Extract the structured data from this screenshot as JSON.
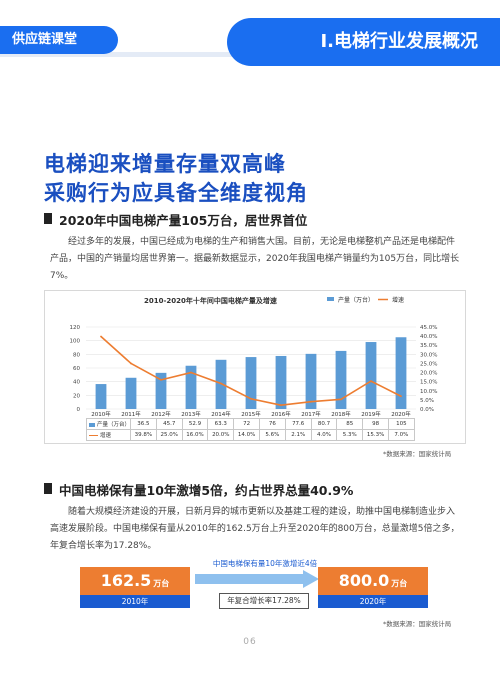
{
  "header": {
    "brand": "供应链课堂",
    "section": "I.电梯行业发展概况"
  },
  "title": {
    "line1": "电梯迎来增量存量双高峰",
    "line2": "采购行为应具备全维度视角"
  },
  "section1": {
    "heading": "2020年中国电梯产量105万台，居世界首位",
    "paragraph": "经过多年的发展，中国已经成为电梯的生产和销售大国。目前，无论是电梯整机产品还是电梯配件产品，中国的产销量均居世界第一。据最新数据显示，2020年我国电梯产销量约为105万台，同比增长7%。",
    "source": "*数据来源：国家统计局"
  },
  "chart_data": {
    "type": "bar",
    "title": "2010-2020年十年间中国电梯产量及增速",
    "categories": [
      "2010年",
      "2011年",
      "2012年",
      "2013年",
      "2014年",
      "2015年",
      "2016年",
      "2017年",
      "2018年",
      "2019年",
      "2020年"
    ],
    "series": [
      {
        "name": "产量（万台）",
        "kind": "bar",
        "axis": "left",
        "color": "#5b9bd5",
        "values": [
          36.5,
          45.7,
          52.9,
          63.3,
          72,
          76,
          77.6,
          80.7,
          85,
          98,
          105
        ],
        "labels": [
          "36.5",
          "45.7",
          "52.9",
          "63.3",
          "72",
          "76",
          "77.6",
          "80.7",
          "85",
          "98",
          "105"
        ]
      },
      {
        "name": "增速",
        "kind": "line",
        "axis": "right",
        "color": "#ed7d31",
        "values": [
          39.8,
          25.0,
          16.0,
          20.0,
          14.0,
          5.6,
          2.1,
          4.0,
          5.3,
          15.3,
          7.0
        ],
        "labels": [
          "39.8%",
          "25.0%",
          "16.0%",
          "20.0%",
          "14.0%",
          "5.6%",
          "2.1%",
          "4.0%",
          "5.3%",
          "15.3%",
          "7.0%"
        ]
      }
    ],
    "y_left": {
      "min": 0,
      "max": 120,
      "ticks": [
        0,
        20,
        40,
        60,
        80,
        100,
        120
      ]
    },
    "y_right": {
      "min": 0,
      "max": 45,
      "ticks": [
        "0.0%",
        "5.0%",
        "10.0%",
        "15.0%",
        "20.0%",
        "25.0%",
        "30.0%",
        "35.0%",
        "40.0%",
        "45.0%"
      ]
    },
    "grid": true,
    "legend": "top-right"
  },
  "section2": {
    "heading": "中国电梯保有量10年激增5倍，约占世界总量40.9%",
    "paragraph": "随着大规模经济建设的开展，日新月异的城市更新以及基建工程的建设，助推中国电梯制造业步入高速发展阶段。中国电梯保有量从2010年的162.5万台上升至2020年的800万台，总量激增5倍之多，年复合增长率为17.28%。",
    "source": "*数据来源：国家统计局"
  },
  "infographic": {
    "caption": "中国电梯保有量10年激增近4倍",
    "left": {
      "value": "162.5",
      "unit": "万台",
      "year": "2010年"
    },
    "right": {
      "value": "800.0",
      "unit": "万台",
      "year": "2020年"
    },
    "cagr": "年复合增长率17.28%",
    "colors": {
      "stat": "#ed7d31",
      "year": "#1a5bd0",
      "arrow": "#8ec0ee"
    }
  },
  "page_number": "06"
}
